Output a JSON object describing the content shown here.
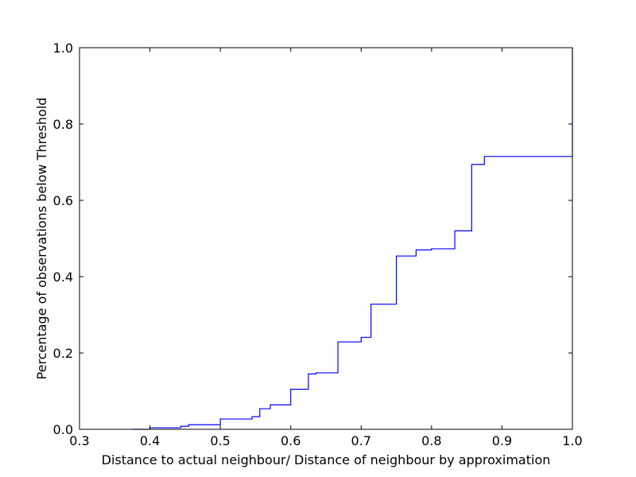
{
  "chart_data": {
    "type": "line",
    "title": "",
    "xlabel": "Distance to actual neighbour/ Distance of neighbour by approximation",
    "ylabel": "Percentage of observations below Threshold",
    "xlim": [
      0.3,
      1.0
    ],
    "ylim": [
      0.0,
      1.0
    ],
    "x_ticks": [
      "0.3",
      "0.4",
      "0.5",
      "0.6",
      "0.7",
      "0.8",
      "0.9",
      "1.0"
    ],
    "y_ticks": [
      "0.0",
      "0.2",
      "0.4",
      "0.6",
      "0.8",
      "1.0"
    ],
    "grid": false,
    "legend": "none",
    "step": true,
    "series": [
      {
        "color": "#0000ff",
        "x": [
          0.375,
          0.4,
          0.444,
          0.455,
          0.5,
          0.545,
          0.556,
          0.571,
          0.6,
          0.625,
          0.636,
          0.667,
          0.7,
          0.714,
          0.75,
          0.778,
          0.8,
          0.833,
          0.857,
          0.875,
          1.0,
          1.0
        ],
        "y": [
          0.0,
          0.004,
          0.008,
          0.012,
          0.027,
          0.033,
          0.054,
          0.064,
          0.105,
          0.145,
          0.148,
          0.229,
          0.241,
          0.328,
          0.454,
          0.47,
          0.473,
          0.52,
          0.694,
          0.715,
          0.716,
          1.0
        ]
      }
    ]
  }
}
